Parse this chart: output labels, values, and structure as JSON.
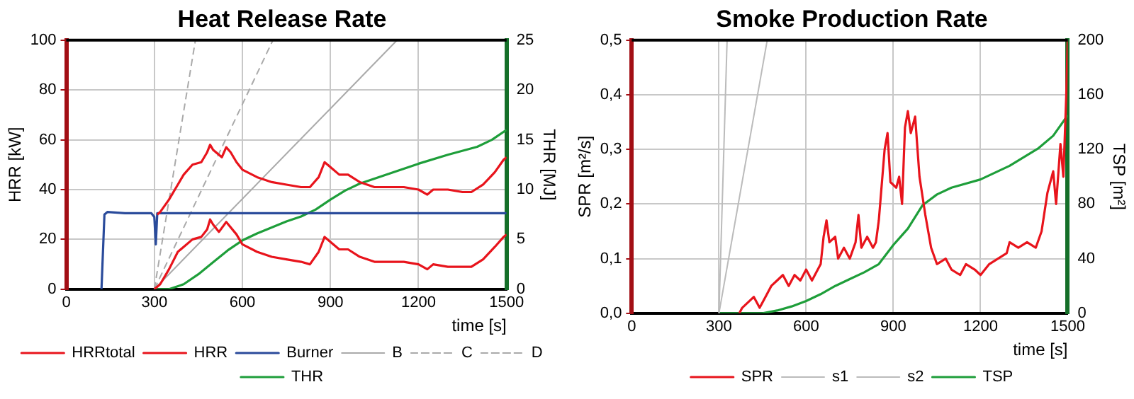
{
  "chart_data": [
    {
      "type": "line",
      "title": "Heat Release Rate",
      "xlabel": "time [s]",
      "ylabel": "HRR [kW]",
      "y2label": "THR [MJ]",
      "xlim": [
        0,
        1500
      ],
      "xticks": [
        0,
        300,
        600,
        900,
        1200,
        1500
      ],
      "ylim": [
        0,
        100
      ],
      "yticks": [
        0,
        20,
        40,
        60,
        80,
        100
      ],
      "y2lim": [
        0,
        25
      ],
      "y2ticks": [
        0,
        5,
        10,
        15,
        20,
        25
      ],
      "grid": true,
      "legend": "bottom",
      "marker": "none",
      "series": [
        {
          "name": "HRRtotal",
          "color": "#e8141c",
          "x": [
            310,
            320,
            350,
            380,
            400,
            430,
            460,
            480,
            490,
            500,
            520,
            530,
            545,
            560,
            580,
            600,
            650,
            700,
            750,
            800,
            830,
            860,
            880,
            900,
            930,
            960,
            1000,
            1050,
            1100,
            1150,
            1200,
            1230,
            1250,
            1300,
            1350,
            1380,
            1420,
            1460,
            1490,
            1500
          ],
          "values": [
            30,
            31,
            36,
            42,
            46,
            50,
            51,
            55,
            58,
            56,
            54,
            53,
            57,
            55,
            51,
            48,
            45,
            43,
            42,
            41,
            41,
            45,
            51,
            49,
            46,
            46,
            43,
            41,
            41,
            41,
            40,
            38,
            40,
            40,
            39,
            39,
            42,
            47,
            52,
            53
          ]
        },
        {
          "name": "HRR",
          "color": "#e8141c",
          "x": [
            300,
            320,
            350,
            380,
            400,
            430,
            460,
            480,
            490,
            500,
            520,
            545,
            580,
            600,
            650,
            700,
            750,
            800,
            830,
            860,
            880,
            900,
            930,
            960,
            1000,
            1050,
            1100,
            1150,
            1200,
            1230,
            1250,
            1300,
            1350,
            1380,
            1420,
            1460,
            1490,
            1500
          ],
          "values": [
            0,
            2,
            8,
            15,
            17,
            20,
            21,
            24,
            28,
            26,
            23,
            27,
            22,
            18,
            15,
            13,
            12,
            11,
            10,
            15,
            21,
            19,
            16,
            16,
            13,
            11,
            11,
            11,
            10,
            8,
            10,
            9,
            9,
            9,
            12,
            17,
            21,
            22
          ]
        },
        {
          "name": "Burner",
          "color": "#2a4b9b",
          "x": [
            120,
            130,
            140,
            200,
            290,
            300,
            305,
            310,
            1500
          ],
          "values": [
            0,
            30,
            31,
            30.5,
            30.5,
            29,
            18,
            30.5,
            30.5
          ]
        },
        {
          "name": "B",
          "color": "#aaaaaa",
          "line_style": "solid",
          "x": [
            300,
            1127
          ],
          "values": [
            0,
            100
          ]
        },
        {
          "name": "C",
          "color": "#aaaaaa",
          "line_style": "dashed",
          "x": [
            300,
            440
          ],
          "values": [
            0,
            100
          ]
        },
        {
          "name": "D",
          "color": "#aaaaaa",
          "line_style": "dashed",
          "x": [
            300,
            704
          ],
          "values": [
            0,
            100
          ]
        },
        {
          "name": "THR",
          "color": "#1e9e3a",
          "axis": "y2",
          "x": [
            300,
            350,
            400,
            450,
            500,
            550,
            600,
            650,
            700,
            750,
            800,
            850,
            900,
            950,
            1000,
            1100,
            1200,
            1300,
            1400,
            1450,
            1500
          ],
          "values": [
            0,
            0,
            0.5,
            1.5,
            2.7,
            3.9,
            4.9,
            5.6,
            6.2,
            6.8,
            7.3,
            8,
            9,
            9.9,
            10.6,
            11.6,
            12.6,
            13.5,
            14.3,
            15,
            16
          ]
        }
      ]
    },
    {
      "type": "line",
      "title": "Smoke Production Rate",
      "xlabel": "time [s]",
      "ylabel": "SPR [m²/s]",
      "y2label": "TSP [m²]",
      "xlim": [
        0,
        1500
      ],
      "xticks": [
        0,
        300,
        600,
        900,
        1200,
        1500
      ],
      "ylim": [
        0,
        0.5
      ],
      "yticks": [
        {
          "value": 0,
          "label": "0,0"
        },
        {
          "value": 0.1,
          "label": "0,1"
        },
        {
          "value": 0.2,
          "label": "0,2"
        },
        {
          "value": 0.3,
          "label": "0,3"
        },
        {
          "value": 0.4,
          "label": "0,4"
        },
        {
          "value": 0.5,
          "label": "0,5"
        }
      ],
      "y2lim": [
        0,
        200
      ],
      "y2ticks": [
        0,
        40,
        80,
        120,
        160,
        200
      ],
      "grid": true,
      "legend": "bottom",
      "marker": "none",
      "series": [
        {
          "name": "SPR",
          "color": "#e8141c",
          "x": [
            370,
            380,
            400,
            420,
            440,
            460,
            480,
            500,
            520,
            540,
            560,
            580,
            600,
            620,
            640,
            650,
            660,
            670,
            680,
            700,
            710,
            730,
            750,
            770,
            780,
            790,
            810,
            830,
            840,
            850,
            870,
            880,
            890,
            910,
            920,
            930,
            940,
            950,
            960,
            975,
            990,
            1010,
            1030,
            1050,
            1080,
            1100,
            1130,
            1150,
            1180,
            1200,
            1230,
            1260,
            1290,
            1300,
            1330,
            1360,
            1390,
            1410,
            1430,
            1450,
            1460,
            1475,
            1485,
            1495,
            1500
          ],
          "values": [
            0,
            0.01,
            0.02,
            0.03,
            0.01,
            0.03,
            0.05,
            0.06,
            0.07,
            0.05,
            0.07,
            0.06,
            0.08,
            0.06,
            0.08,
            0.09,
            0.14,
            0.17,
            0.13,
            0.14,
            0.1,
            0.12,
            0.1,
            0.13,
            0.18,
            0.12,
            0.14,
            0.12,
            0.13,
            0.17,
            0.3,
            0.33,
            0.24,
            0.23,
            0.25,
            0.2,
            0.34,
            0.37,
            0.33,
            0.36,
            0.25,
            0.18,
            0.12,
            0.09,
            0.1,
            0.08,
            0.07,
            0.09,
            0.08,
            0.07,
            0.09,
            0.1,
            0.11,
            0.13,
            0.12,
            0.13,
            0.12,
            0.15,
            0.22,
            0.26,
            0.2,
            0.31,
            0.25,
            0.4,
            0.5
          ]
        },
        {
          "name": "s1",
          "color": "#bbbbbb",
          "x": [
            300,
            328
          ],
          "values": [
            0,
            0.5
          ]
        },
        {
          "name": "s2",
          "color": "#bbbbbb",
          "x": [
            300,
            466
          ],
          "values": [
            0,
            0.5
          ]
        },
        {
          "name": "TSP",
          "color": "#1e9e3a",
          "axis": "y2",
          "x": [
            300,
            450,
            500,
            550,
            600,
            650,
            700,
            750,
            800,
            850,
            900,
            950,
            1000,
            1050,
            1100,
            1200,
            1300,
            1400,
            1450,
            1500
          ],
          "values": [
            0,
            0,
            2,
            5,
            9,
            14,
            20,
            25,
            30,
            36,
            50,
            62,
            79,
            87,
            92,
            98,
            108,
            121,
            130,
            145
          ]
        }
      ]
    }
  ]
}
